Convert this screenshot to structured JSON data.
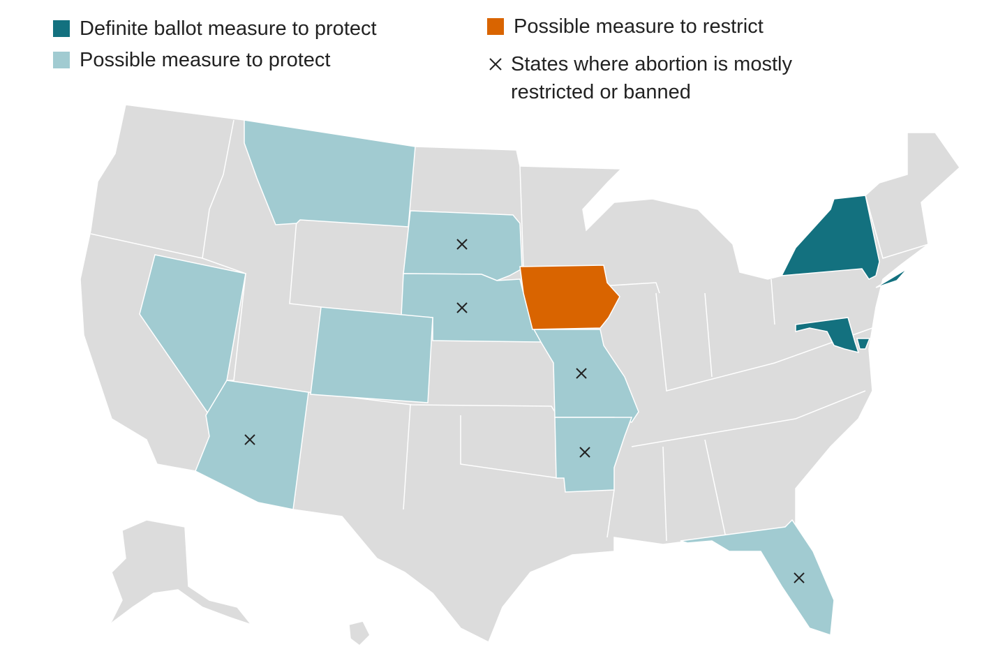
{
  "legend": {
    "items": [
      {
        "label": "Definite ballot measure to protect",
        "color": "#13717f"
      },
      {
        "label": "Possible measure to protect",
        "color": "#a1cbd1"
      },
      {
        "label": "Possible measure to restrict",
        "color": "#d96400"
      },
      {
        "label": "States where abortion is mostly restricted or banned"
      }
    ]
  }
}
